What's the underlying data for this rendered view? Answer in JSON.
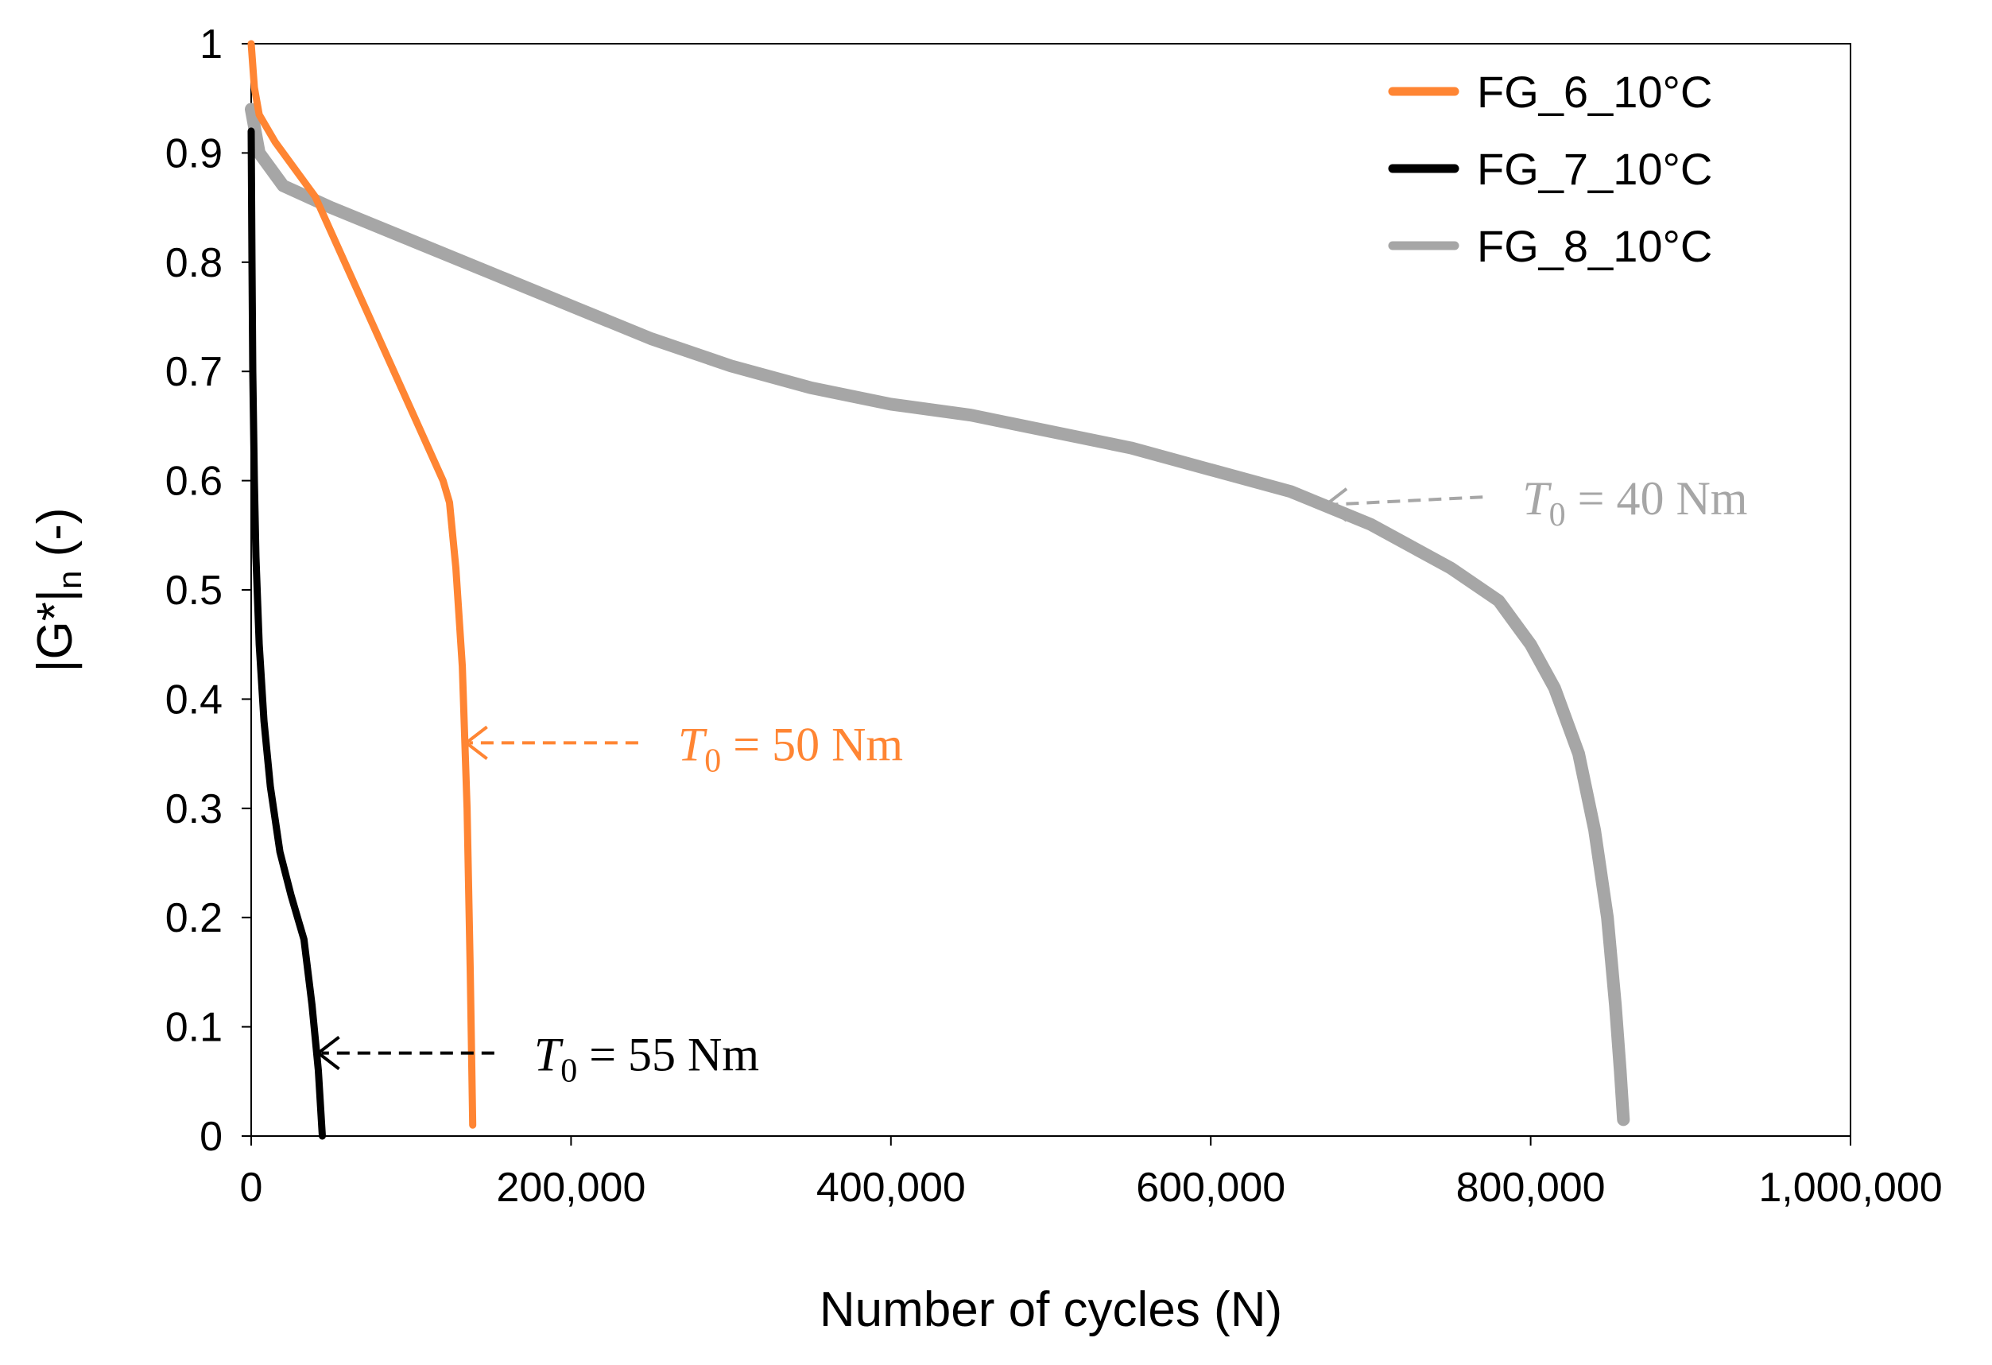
{
  "chart_data": {
    "type": "line",
    "title": "",
    "xlabel": "Number of cycles (N)",
    "ylabel": "|G*|n (-)",
    "ylabel_main": "|G*|",
    "ylabel_sub": "n",
    "ylabel_suffix": " (-)",
    "xlim": [
      0,
      1000000
    ],
    "ylim": [
      0,
      1
    ],
    "x_ticks": [
      0,
      200000,
      400000,
      600000,
      800000,
      1000000
    ],
    "x_tick_labels": [
      "0",
      "200,000",
      "400,000",
      "600,000",
      "800,000",
      "1,000,000"
    ],
    "y_ticks": [
      0,
      0.1,
      0.2,
      0.3,
      0.4,
      0.5,
      0.6,
      0.7,
      0.8,
      0.9,
      1
    ],
    "y_tick_labels": [
      "0",
      "0.1",
      "0.2",
      "0.3",
      "0.4",
      "0.5",
      "0.6",
      "0.7",
      "0.8",
      "0.9",
      "1"
    ],
    "grid": false,
    "legend_position": "top-right",
    "series": [
      {
        "name": "FG_6_10°C",
        "color": "#FF8533",
        "points": [
          [
            0,
            1.0
          ],
          [
            2000,
            0.96
          ],
          [
            5000,
            0.935
          ],
          [
            15000,
            0.91
          ],
          [
            40000,
            0.86
          ],
          [
            80000,
            0.73
          ],
          [
            120000,
            0.6
          ],
          [
            124000,
            0.58
          ],
          [
            128000,
            0.52
          ],
          [
            132000,
            0.43
          ],
          [
            135000,
            0.3
          ],
          [
            137000,
            0.15
          ],
          [
            138500,
            0.01
          ]
        ]
      },
      {
        "name": "FG_7_10°C",
        "color": "#000000",
        "points": [
          [
            0,
            0.92
          ],
          [
            500,
            0.8
          ],
          [
            1000,
            0.7
          ],
          [
            2000,
            0.6
          ],
          [
            3000,
            0.53
          ],
          [
            5000,
            0.45
          ],
          [
            8000,
            0.38
          ],
          [
            12000,
            0.32
          ],
          [
            18000,
            0.26
          ],
          [
            25000,
            0.22
          ],
          [
            33000,
            0.18
          ],
          [
            38000,
            0.12
          ],
          [
            42000,
            0.06
          ],
          [
            44500,
            0.0
          ]
        ]
      },
      {
        "name": "FG_8_10°C",
        "color": "#A6A6A6",
        "points": [
          [
            0,
            0.94
          ],
          [
            5000,
            0.9
          ],
          [
            20000,
            0.87
          ],
          [
            50000,
            0.85
          ],
          [
            100000,
            0.82
          ],
          [
            150000,
            0.79
          ],
          [
            200000,
            0.76
          ],
          [
            250000,
            0.73
          ],
          [
            300000,
            0.705
          ],
          [
            350000,
            0.685
          ],
          [
            400000,
            0.67
          ],
          [
            450000,
            0.66
          ],
          [
            500000,
            0.645
          ],
          [
            550000,
            0.63
          ],
          [
            600000,
            0.61
          ],
          [
            650000,
            0.59
          ],
          [
            700000,
            0.56
          ],
          [
            750000,
            0.52
          ],
          [
            780000,
            0.49
          ],
          [
            800000,
            0.45
          ],
          [
            815000,
            0.41
          ],
          [
            830000,
            0.35
          ],
          [
            840000,
            0.28
          ],
          [
            848000,
            0.2
          ],
          [
            853000,
            0.12
          ],
          [
            856000,
            0.06
          ],
          [
            858000,
            0.015
          ]
        ]
      }
    ],
    "annotations": [
      {
        "series": "FG_8_10°C",
        "var": "T",
        "sub": "0",
        "rest": " = 40 Nm",
        "color": "#A6A6A6",
        "arrow_to": [
          672000,
          0.578
        ],
        "arrow_from": [
          770000,
          0.585
        ]
      },
      {
        "series": "FG_6_10°C",
        "var": "T",
        "sub": "0",
        "rest": " = 50 Nm",
        "color": "#FF8533",
        "arrow_to": [
          134500,
          0.36
        ],
        "arrow_from": [
          242000,
          0.36
        ]
      },
      {
        "series": "FG_7_10°C",
        "var": "T",
        "sub": "0",
        "rest": " = 55 Nm",
        "color": "#000000",
        "arrow_to": [
          42000,
          0.076
        ],
        "arrow_from": [
          152000,
          0.076
        ]
      }
    ]
  }
}
